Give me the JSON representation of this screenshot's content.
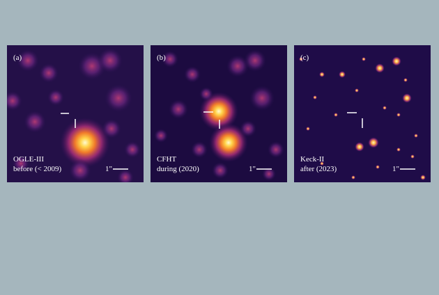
{
  "panels": [
    {
      "label": "(a)",
      "instrument": "OGLE-III",
      "epoch": "before (< 2009)",
      "scale": "1\""
    },
    {
      "label": "(b)",
      "instrument": "CFHT",
      "epoch": "during (2020)",
      "scale": "1\""
    },
    {
      "label": "(c)",
      "instrument": "Keck-II",
      "epoch": "after (2023)",
      "scale": "1\""
    }
  ]
}
